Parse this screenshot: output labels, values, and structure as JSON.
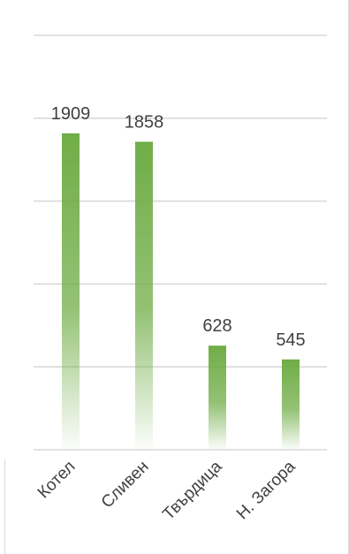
{
  "chart_data": {
    "type": "bar",
    "categories": [
      "Котел",
      "Сливен",
      "Твърдица",
      "Н. Загора"
    ],
    "values": [
      1909,
      1858,
      628,
      545
    ],
    "title": "",
    "xlabel": "",
    "ylabel": "",
    "ylim": [
      0,
      2500
    ],
    "grid": true,
    "gridlines": [
      0,
      500,
      1000,
      1500,
      2000,
      2500
    ],
    "legend": "none",
    "data_labels": true,
    "bar_color": "#70ad47",
    "bar_fade_color": "#ffffff",
    "gridline_color": "#d9d9d9",
    "label_color": "#404040"
  }
}
